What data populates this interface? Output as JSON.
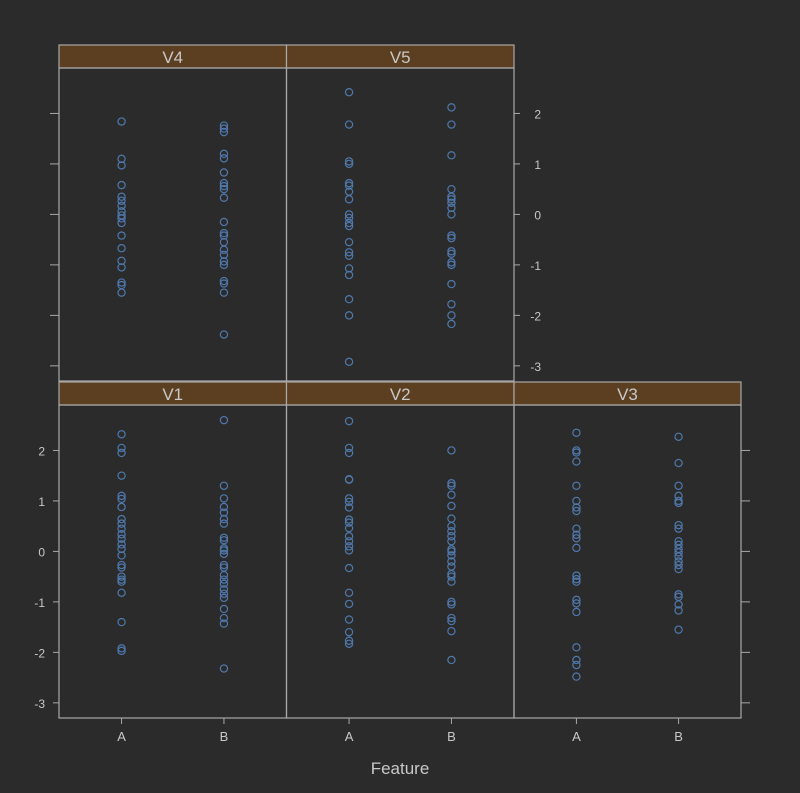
{
  "chart_data": {
    "type": "scatter",
    "xlabel": "Feature",
    "ylabel": "",
    "categories": [
      "A",
      "B"
    ],
    "ylim": [
      -3.3,
      2.9
    ],
    "y_ticks": [
      -3,
      -2,
      -1,
      0,
      1,
      2
    ],
    "grid": false,
    "colors": {
      "background": "#2b2b2b",
      "strip": "#5c3f20",
      "frame": "#a8a8a8",
      "point": "#4f79ad",
      "text": "#c8c8c8"
    },
    "panels": [
      {
        "name": "V1",
        "values": {
          "A": [
            2.32,
            2.05,
            1.95,
            1.5,
            1.1,
            1.04,
            0.88,
            0.64,
            0.55,
            0.45,
            0.34,
            0.25,
            0.14,
            0.05,
            -0.08,
            -0.27,
            -0.32,
            -0.5,
            -0.56,
            -0.6,
            -0.82,
            -1.4,
            -1.92,
            -1.97
          ],
          "B": [
            2.6,
            1.3,
            1.05,
            0.88,
            0.77,
            0.64,
            0.55,
            0.27,
            0.22,
            0.06,
            0.02,
            -0.05,
            -0.27,
            -0.32,
            -0.47,
            -0.56,
            -0.64,
            -0.75,
            -0.84,
            -0.92,
            -1.14,
            -1.32,
            -1.43,
            -2.32
          ]
        }
      },
      {
        "name": "V2",
        "values": {
          "A": [
            2.58,
            2.05,
            1.95,
            1.43,
            1.42,
            1.05,
            0.98,
            0.87,
            0.63,
            0.57,
            0.46,
            0.3,
            0.2,
            0.1,
            0.02,
            -0.33,
            -0.82,
            -1.04,
            -1.35,
            -1.6,
            -1.77,
            -1.83
          ],
          "B": [
            2.0,
            1.35,
            1.3,
            1.12,
            0.9,
            0.65,
            0.5,
            0.4,
            0.3,
            0.2,
            0.04,
            0.0,
            -0.08,
            -0.2,
            -0.3,
            -0.45,
            -0.5,
            -0.6,
            -1.0,
            -1.05,
            -1.32,
            -1.38,
            -1.58,
            -2.15
          ]
        }
      },
      {
        "name": "V3",
        "values": {
          "A": [
            2.35,
            2.0,
            1.96,
            1.78,
            1.3,
            1.0,
            0.87,
            0.8,
            0.45,
            0.33,
            0.26,
            0.07,
            -0.48,
            -0.55,
            -0.6,
            -0.96,
            -1.03,
            -1.2,
            -1.9,
            -2.15,
            -2.25,
            -2.48
          ],
          "B": [
            2.27,
            1.75,
            1.3,
            1.1,
            1.0,
            0.96,
            0.52,
            0.45,
            0.2,
            0.13,
            0.05,
            -0.02,
            -0.1,
            -0.2,
            -0.27,
            -0.35,
            -0.85,
            -0.9,
            -1.05,
            -1.17,
            -1.55
          ]
        }
      },
      {
        "name": "V4",
        "values": {
          "A": [
            1.84,
            1.1,
            0.97,
            0.58,
            0.35,
            0.27,
            0.17,
            0.06,
            -0.02,
            -0.08,
            -0.17,
            -0.42,
            -0.67,
            -0.92,
            -1.05,
            -1.35,
            -1.4,
            -1.55
          ],
          "B": [
            1.76,
            1.7,
            1.63,
            1.2,
            1.11,
            0.83,
            0.62,
            0.56,
            0.5,
            0.33,
            -0.15,
            -0.37,
            -0.42,
            -0.55,
            -0.7,
            -0.8,
            -0.93,
            -1.0,
            -1.32,
            -1.37,
            -1.55,
            -2.38
          ]
        }
      },
      {
        "name": "V5",
        "values": {
          "A": [
            2.42,
            1.78,
            1.05,
            1.0,
            0.62,
            0.57,
            0.45,
            0.3,
            0.0,
            -0.07,
            -0.17,
            -0.23,
            -0.55,
            -0.75,
            -0.82,
            -1.07,
            -1.2,
            -1.68,
            -2.0,
            -2.92
          ],
          "B": [
            2.12,
            1.78,
            1.17,
            0.5,
            0.35,
            0.3,
            0.23,
            0.13,
            0.0,
            -0.42,
            -0.47,
            -0.73,
            -0.78,
            -0.95,
            -1.0,
            -1.38,
            -1.78,
            -2.0,
            -2.17
          ]
        }
      }
    ]
  }
}
